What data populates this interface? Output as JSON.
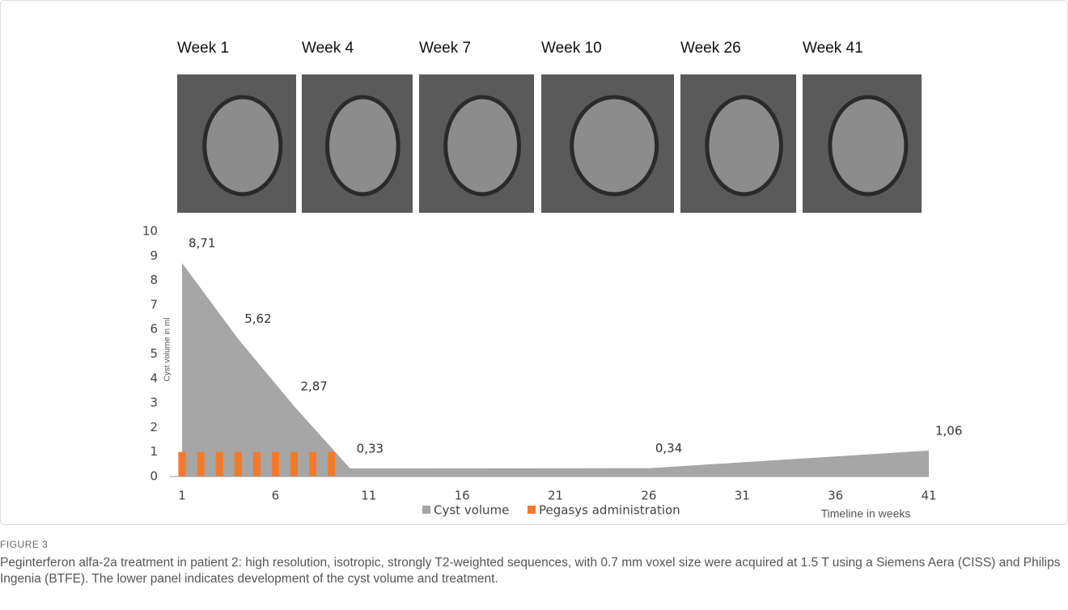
{
  "figure": {
    "image_labels": [
      "Week 1",
      "Week 4",
      "Week 7",
      "Week 10",
      "Week 26",
      "Week 41"
    ],
    "label": "FIGURE 3",
    "caption": "Peginterferon alfa-2a treatment in patient 2: high resolution, isotropic, strongly T2-weighted sequences, with 0.7 mm voxel size were acquired at 1.5 T using a Siemens Aera (CISS) and Philips Ingenia (BTFE). The lower panel indicates development of the cyst volume and treatment."
  },
  "chart_data": {
    "type": "area",
    "ylabel": "Cyst volume in ml",
    "xlabel": "Timeline  in weeks",
    "xlim": [
      1,
      41
    ],
    "xticks": [
      1,
      6,
      11,
      16,
      21,
      26,
      31,
      36,
      41
    ],
    "ylim": [
      0,
      10
    ],
    "yticks": [
      0,
      1,
      2,
      3,
      4,
      5,
      6,
      7,
      8,
      9,
      10
    ],
    "series": [
      {
        "name": "Cyst volume",
        "type": "area",
        "color": "#a6a6a6",
        "x": [
          1,
          4,
          7,
          10,
          26,
          41
        ],
        "values": [
          8.71,
          5.62,
          2.87,
          0.33,
          0.34,
          1.06
        ],
        "value_labels": [
          "8,71",
          "5,62",
          "2,87",
          "0,33",
          "0,34",
          "1,06"
        ]
      },
      {
        "name": "Pegasys administration",
        "type": "bar",
        "color": "#f47a2a",
        "x": [
          1,
          2,
          3,
          4,
          5,
          6,
          7,
          8,
          9
        ],
        "values": [
          1,
          1,
          1,
          1,
          1,
          1,
          1,
          1,
          1
        ]
      }
    ]
  }
}
